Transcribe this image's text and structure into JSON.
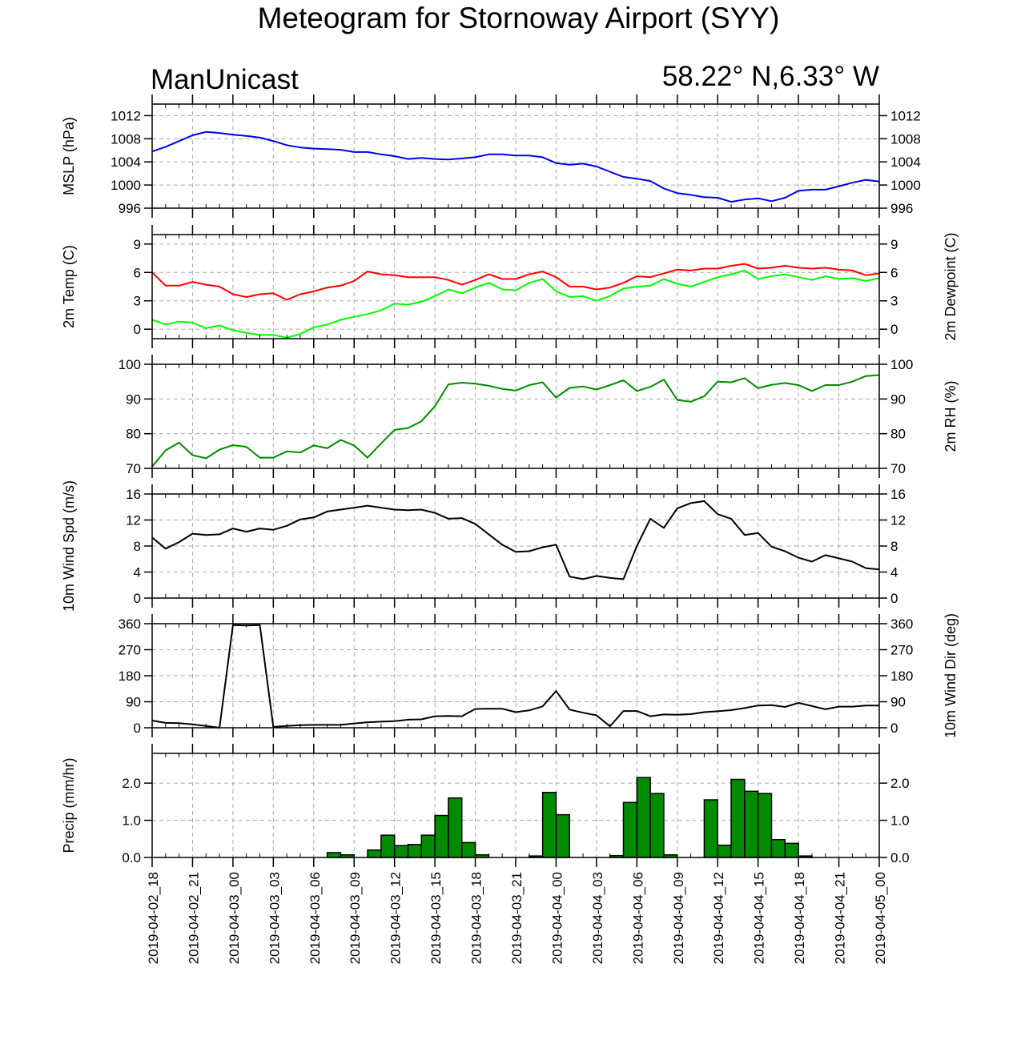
{
  "title": "Meteogram for Stornoway Airport (SYY)",
  "model": "ManUnicast",
  "location": "58.22° N,6.33° W",
  "colors": {
    "mslp": "#0000ee",
    "temp": "#ff0000",
    "dewpoint": "#00ff00",
    "rh": "#008c00",
    "wind": "#000000",
    "precip_fill": "#008c00",
    "grid": "#aaaaaa"
  },
  "chart_data": {
    "type": "line",
    "x_labels": [
      "2019-04-02_18",
      "2019-04-02_21",
      "2019-04-03_00",
      "2019-04-03_03",
      "2019-04-03_06",
      "2019-04-03_09",
      "2019-04-03_12",
      "2019-04-03_15",
      "2019-04-03_18",
      "2019-04-03_21",
      "2019-04-04_00",
      "2019-04-04_03",
      "2019-04-04_06",
      "2019-04-04_09",
      "2019-04-04_12",
      "2019-04-04_15",
      "2019-04-04_18",
      "2019-04-04_21",
      "2019-04-05_00"
    ],
    "x_hours_from": "2019-04-02_18",
    "panels": [
      {
        "id": "mslp",
        "ylabel_left": "MSLP (hPa)",
        "ylabel_right": "",
        "ylim": [
          996,
          1014
        ],
        "yticks": [
          996,
          1000,
          1004,
          1008,
          1012
        ],
        "tick_labels": [
          "996",
          "1000",
          "1004",
          "1008",
          "1012"
        ],
        "series": [
          {
            "key": "mslp",
            "values": [
              1005.8,
              1006.6,
              1007.6,
              1008.6,
              1009.2,
              1009.0,
              1008.7,
              1008.5,
              1008.2,
              1007.6,
              1006.9,
              1006.5,
              1006.3,
              1006.2,
              1006.1,
              1005.7,
              1005.7,
              1005.3,
              1005.0,
              1004.5,
              1004.7,
              1004.5,
              1004.4,
              1004.6,
              1004.8,
              1005.3,
              1005.3,
              1005.1,
              1005.1,
              1004.8,
              1003.8,
              1003.5,
              1003.7,
              1003.2,
              1002.3,
              1001.4,
              1001.1,
              1000.7,
              999.4,
              998.6,
              998.3,
              997.9,
              997.8,
              997.1,
              997.5,
              997.7,
              997.2,
              997.8,
              999.0,
              999.2,
              999.2,
              999.8,
              1000.4,
              1000.9,
              1000.6
            ]
          }
        ]
      },
      {
        "id": "temp",
        "ylabel_left": "2m Temp (C)",
        "ylabel_right": "2m Dewpoint (C)",
        "ylim": [
          -1,
          10
        ],
        "yticks": [
          0,
          3,
          6,
          9
        ],
        "tick_labels": [
          "0",
          "3",
          "6",
          "9"
        ],
        "series": [
          {
            "key": "temp",
            "values": [
              6.0,
              4.6,
              4.6,
              5.0,
              4.7,
              4.5,
              3.7,
              3.4,
              3.7,
              3.8,
              3.1,
              3.7,
              4.0,
              4.4,
              4.6,
              5.1,
              6.1,
              5.8,
              5.7,
              5.5,
              5.5,
              5.5,
              5.2,
              4.7,
              5.2,
              5.8,
              5.3,
              5.3,
              5.8,
              6.1,
              5.5,
              4.5,
              4.5,
              4.2,
              4.4,
              4.9,
              5.6,
              5.5,
              5.9,
              6.3,
              6.2,
              6.4,
              6.4,
              6.7,
              6.9,
              6.4,
              6.5,
              6.7,
              6.5,
              6.4,
              6.5,
              6.3,
              6.2,
              5.7,
              5.9
            ]
          },
          {
            "key": "dewpoint",
            "values": [
              1.0,
              0.5,
              0.8,
              0.7,
              0.1,
              0.4,
              -0.1,
              -0.4,
              -0.6,
              -0.6,
              -0.9,
              -0.5,
              0.2,
              0.5,
              1.0,
              1.3,
              1.6,
              2.0,
              2.7,
              2.6,
              2.9,
              3.5,
              4.2,
              3.8,
              4.4,
              4.9,
              4.2,
              4.1,
              4.9,
              5.3,
              4.0,
              3.4,
              3.5,
              3.0,
              3.5,
              4.3,
              4.5,
              4.6,
              5.3,
              4.8,
              4.5,
              5.0,
              5.5,
              5.8,
              6.2,
              5.3,
              5.6,
              5.8,
              5.5,
              5.2,
              5.6,
              5.3,
              5.4,
              5.1,
              5.4
            ]
          }
        ]
      },
      {
        "id": "rh",
        "ylabel_left": "",
        "ylabel_right": "2m RH (%)",
        "ylim": [
          70,
          100
        ],
        "yticks": [
          70,
          80,
          90,
          100
        ],
        "tick_labels": [
          "70",
          "80",
          "90",
          "100"
        ],
        "series": [
          {
            "key": "rh",
            "values": [
              70.5,
              75.2,
              77.4,
              73.8,
              72.9,
              75.4,
              76.7,
              76.2,
              73.1,
              73.1,
              74.9,
              74.6,
              76.6,
              75.8,
              78.2,
              76.6,
              73.1,
              77.2,
              81.1,
              81.6,
              83.6,
              87.9,
              94.2,
              94.7,
              94.4,
              93.8,
              92.9,
              92.4,
              94.0,
              94.8,
              90.4,
              93.2,
              93.6,
              92.7,
              94.0,
              95.4,
              92.3,
              93.5,
              95.6,
              89.7,
              89.2,
              90.8,
              95.0,
              94.8,
              96.0,
              93.1,
              94.1,
              94.6,
              94.0,
              92.3,
              94.0,
              94.0,
              95.0,
              96.6,
              96.9
            ]
          }
        ]
      },
      {
        "id": "wind",
        "ylabel_left": "10m Wind Spd (m/s)",
        "ylabel_right": "",
        "ylim": [
          0,
          16
        ],
        "yticks": [
          0,
          4,
          8,
          12,
          16
        ],
        "tick_labels": [
          "0",
          "4",
          "8",
          "12",
          "16"
        ],
        "series": [
          {
            "key": "wind",
            "values": [
              9.3,
              7.6,
              8.6,
              9.9,
              9.7,
              9.8,
              10.7,
              10.2,
              10.7,
              10.5,
              11.1,
              12.1,
              12.4,
              13.3,
              13.6,
              13.9,
              14.2,
              13.9,
              13.6,
              13.5,
              13.6,
              13.1,
              12.2,
              12.3,
              11.4,
              9.8,
              8.2,
              7.1,
              7.2,
              7.8,
              8.2,
              3.3,
              2.9,
              3.4,
              3.1,
              2.9,
              8.0,
              12.2,
              10.8,
              13.8,
              14.6,
              14.9,
              12.9,
              12.2,
              9.7,
              10.0,
              7.9,
              7.2,
              6.2,
              5.6,
              6.6,
              6.1,
              5.6,
              4.6,
              4.4
            ]
          }
        ]
      },
      {
        "id": "winddir",
        "ylabel_left": "",
        "ylabel_right": "10m Wind Dir (deg)",
        "ylim": [
          0,
          360
        ],
        "yticks": [
          0,
          90,
          180,
          270,
          360
        ],
        "tick_labels": [
          "0",
          "90",
          "180",
          "270",
          "360"
        ],
        "series": [
          {
            "key": "wind",
            "values": [
              25,
              17,
              16,
              12,
              6,
              0,
              355,
              354,
              355,
              3,
              6,
              9,
              10,
              10,
              10,
              15,
              19,
              21,
              23,
              28,
              29,
              40,
              41,
              40,
              65,
              66,
              66,
              54,
              60,
              74,
              127,
              63,
              52,
              43,
              5,
              58,
              58,
              40,
              46,
              45,
              47,
              54,
              57,
              61,
              68,
              77,
              78,
              72,
              86,
              75,
              64,
              73,
              73,
              77,
              77
            ]
          }
        ]
      },
      {
        "id": "precip",
        "type": "bar",
        "ylabel_left": "Precip (mm/hr)",
        "ylabel_right": "",
        "ylim": [
          0,
          2.8
        ],
        "yticks": [
          0,
          1.0,
          2.0
        ],
        "tick_labels": [
          "0.0",
          "1.0",
          "2.0"
        ],
        "values": [
          0,
          0,
          0,
          0,
          0,
          0,
          0,
          0,
          0,
          0,
          0,
          0,
          0,
          0.13,
          0.07,
          0,
          0.2,
          0.6,
          0.32,
          0.35,
          0.6,
          1.13,
          1.6,
          0.4,
          0.07,
          0,
          0,
          0,
          0.04,
          1.75,
          1.15,
          0,
          0,
          0,
          0.05,
          1.48,
          2.15,
          1.72,
          0.07,
          0,
          0,
          1.55,
          0.33,
          2.1,
          1.78,
          1.72,
          0.48,
          0.38,
          0.04,
          0,
          0,
          0,
          0,
          0
        ]
      }
    ]
  }
}
